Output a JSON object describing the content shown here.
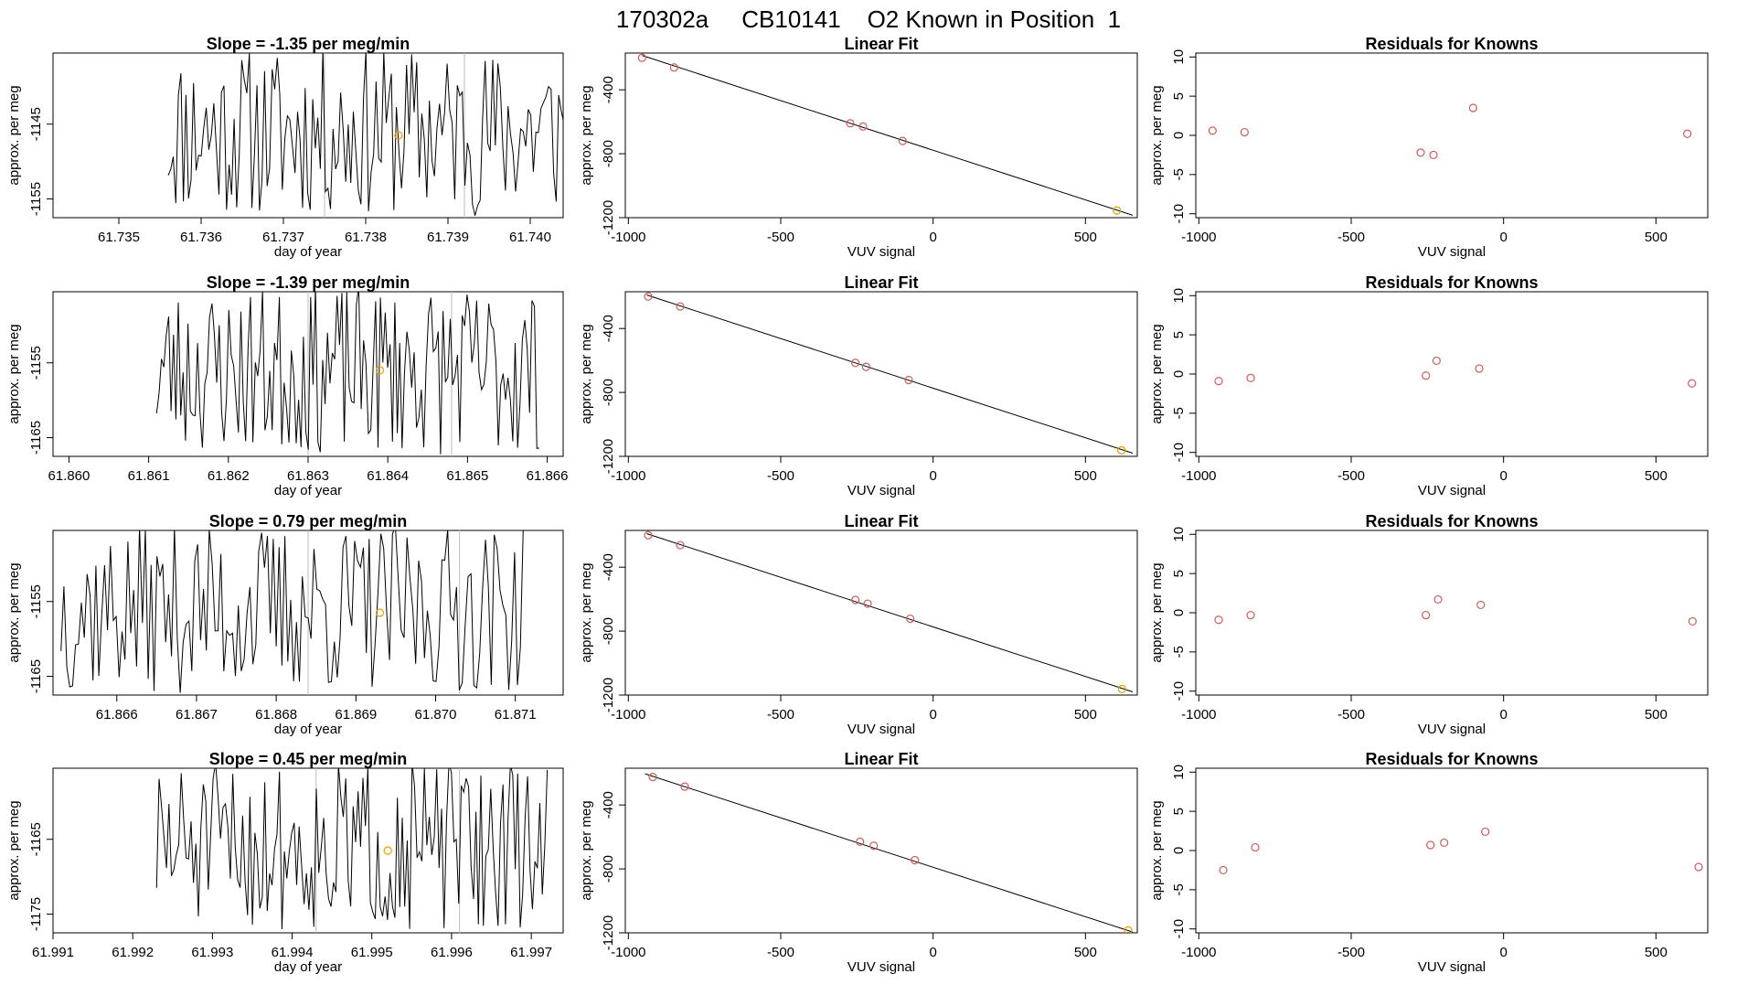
{
  "page_title": "170302a     CB10141    O2 Known in Position  1",
  "colors": {
    "line": "#000000",
    "gray_line": "#bebebe",
    "point_red": "#cd5c5c",
    "point_orange": "#e69f00",
    "axes": "#000000"
  },
  "chart_data": [
    {
      "type": "line",
      "row": 0,
      "col": 0,
      "title": "Slope =  -1.35  per meg/min",
      "xlabel": "day of year",
      "ylabel": "approx. per meg",
      "xlim": [
        61.7342,
        61.7404
      ],
      "ylim": [
        -1157.5,
        -1135.5
      ],
      "xticks": [
        "61.735",
        "61.736",
        "61.737",
        "61.738",
        "61.739",
        "61.740"
      ],
      "yticks": [
        "-1145",
        "-1155"
      ],
      "trace_x_range": [
        61.7356,
        61.7405
      ],
      "trace_seed": 11,
      "trace_center": -1146,
      "trace_spread": 9,
      "vlines": [
        61.7375,
        61.7392
      ],
      "marker": {
        "x": 61.7384,
        "y": -1146.5
      }
    },
    {
      "type": "scatter",
      "row": 0,
      "col": 1,
      "title": "Linear Fit",
      "xlabel": "VUV signal",
      "ylabel": "approx. per meg",
      "xlim": [
        -1010,
        670
      ],
      "ylim": [
        -1200,
        -170
      ],
      "xticks": [
        "-1000",
        "-500",
        "0",
        "500"
      ],
      "yticks": [
        "-400",
        "-800",
        "-1200"
      ],
      "fit_line": {
        "x": [
          -955,
          655
        ],
        "y": [
          -185,
          -1185
        ]
      },
      "points": [
        {
          "x": -955,
          "y": -200
        },
        {
          "x": -850,
          "y": -260
        },
        {
          "x": -272,
          "y": -610
        },
        {
          "x": -230,
          "y": -630
        },
        {
          "x": -100,
          "y": -720
        },
        {
          "x": 603,
          "y": -1155,
          "known": true
        }
      ]
    },
    {
      "type": "scatter",
      "row": 0,
      "col": 2,
      "title": "Residuals for Knowns",
      "xlabel": "VUV signal",
      "ylabel": "approx. per meg",
      "xlim": [
        -1010,
        670
      ],
      "ylim": [
        -10.5,
        10.5
      ],
      "xticks": [
        "-1000",
        "-500",
        "0",
        "500"
      ],
      "yticks": [
        "10",
        "5",
        "0",
        "-5",
        "-10"
      ],
      "points": [
        {
          "x": -955,
          "y": 0.6
        },
        {
          "x": -850,
          "y": 0.4
        },
        {
          "x": -272,
          "y": -2.2
        },
        {
          "x": -230,
          "y": -2.5
        },
        {
          "x": -100,
          "y": 3.5
        },
        {
          "x": 603,
          "y": 0.2
        }
      ]
    },
    {
      "type": "line",
      "row": 1,
      "col": 0,
      "title": "Slope =  -1.39  per meg/min",
      "xlabel": "day of year",
      "ylabel": "approx. per meg",
      "xlim": [
        61.8598,
        61.8662
      ],
      "ylim": [
        -1167.5,
        -1145.5
      ],
      "xticks": [
        "61.860",
        "61.861",
        "61.862",
        "61.863",
        "61.864",
        "61.865",
        "61.866"
      ],
      "yticks": [
        "-1155",
        "-1165"
      ],
      "trace_x_range": [
        61.8611,
        61.8659
      ],
      "trace_seed": 23,
      "trace_center": -1156,
      "trace_spread": 9,
      "vlines": [
        61.863,
        61.8648
      ],
      "marker": {
        "x": 61.8639,
        "y": -1156
      }
    },
    {
      "type": "scatter",
      "row": 1,
      "col": 1,
      "title": "Linear Fit",
      "xlabel": "VUV signal",
      "ylabel": "approx. per meg",
      "xlim": [
        -1010,
        670
      ],
      "ylim": [
        -1200,
        -170
      ],
      "xticks": [
        "-1000",
        "-500",
        "0",
        "500"
      ],
      "yticks": [
        "-400",
        "-800",
        "-1200"
      ],
      "fit_line": {
        "x": [
          -940,
          655
        ],
        "y": [
          -190,
          -1180
        ]
      },
      "points": [
        {
          "x": -935,
          "y": -200
        },
        {
          "x": -830,
          "y": -262
        },
        {
          "x": -255,
          "y": -615
        },
        {
          "x": -220,
          "y": -640
        },
        {
          "x": -80,
          "y": -722
        },
        {
          "x": 618,
          "y": -1162,
          "known": true
        }
      ]
    },
    {
      "type": "scatter",
      "row": 1,
      "col": 2,
      "title": "Residuals for Knowns",
      "xlabel": "VUV signal",
      "ylabel": "approx. per meg",
      "xlim": [
        -1010,
        670
      ],
      "ylim": [
        -10.5,
        10.5
      ],
      "xticks": [
        "-1000",
        "-500",
        "0",
        "500"
      ],
      "yticks": [
        "10",
        "5",
        "0",
        "-5",
        "-10"
      ],
      "points": [
        {
          "x": -935,
          "y": -0.9
        },
        {
          "x": -830,
          "y": -0.5
        },
        {
          "x": -255,
          "y": -0.2
        },
        {
          "x": -220,
          "y": 1.7
        },
        {
          "x": -80,
          "y": 0.7
        },
        {
          "x": 618,
          "y": -1.2
        }
      ]
    },
    {
      "type": "line",
      "row": 2,
      "col": 0,
      "title": "Slope =  0.79  per meg/min",
      "xlabel": "day of year",
      "ylabel": "approx. per meg",
      "xlim": [
        61.8652,
        61.8716
      ],
      "ylim": [
        -1167.5,
        -1145.5
      ],
      "xticks": [
        "61.866",
        "61.867",
        "61.868",
        "61.869",
        "61.870",
        "61.871"
      ],
      "yticks": [
        "-1155",
        "-1165"
      ],
      "trace_x_range": [
        61.8653,
        61.8711
      ],
      "trace_seed": 37,
      "trace_center": -1156,
      "trace_spread": 9,
      "vlines": [
        61.8684,
        61.8703
      ],
      "marker": {
        "x": 61.8693,
        "y": -1156.5
      }
    },
    {
      "type": "scatter",
      "row": 2,
      "col": 1,
      "title": "Linear Fit",
      "xlabel": "VUV signal",
      "ylabel": "approx. per meg",
      "xlim": [
        -1010,
        670
      ],
      "ylim": [
        -1200,
        -170
      ],
      "xticks": [
        "-1000",
        "-500",
        "0",
        "500"
      ],
      "yticks": [
        "-400",
        "-800",
        "-1200"
      ],
      "fit_line": {
        "x": [
          -940,
          655
        ],
        "y": [
          -190,
          -1180
        ]
      },
      "points": [
        {
          "x": -935,
          "y": -200
        },
        {
          "x": -830,
          "y": -262
        },
        {
          "x": -255,
          "y": -605
        },
        {
          "x": -215,
          "y": -628
        },
        {
          "x": -75,
          "y": -722
        },
        {
          "x": 620,
          "y": -1162,
          "known": true
        }
      ]
    },
    {
      "type": "scatter",
      "row": 2,
      "col": 2,
      "title": "Residuals for Knowns",
      "xlabel": "VUV signal",
      "ylabel": "approx. per meg",
      "xlim": [
        -1010,
        670
      ],
      "ylim": [
        -10.5,
        10.5
      ],
      "xticks": [
        "-1000",
        "-500",
        "0",
        "500"
      ],
      "yticks": [
        "10",
        "5",
        "0",
        "-5",
        "-10"
      ],
      "points": [
        {
          "x": -935,
          "y": -0.9
        },
        {
          "x": -830,
          "y": -0.3
        },
        {
          "x": -255,
          "y": -0.3
        },
        {
          "x": -215,
          "y": 1.7
        },
        {
          "x": -75,
          "y": 1.0
        },
        {
          "x": 620,
          "y": -1.1
        }
      ]
    },
    {
      "type": "line",
      "row": 3,
      "col": 0,
      "title": "Slope =  0.45  per meg/min",
      "xlabel": "day of year",
      "ylabel": "approx. per meg",
      "xlim": [
        61.991,
        61.9974
      ],
      "ylim": [
        -1177.5,
        -1155.5
      ],
      "xticks": [
        "61.991",
        "61.992",
        "61.993",
        "61.994",
        "61.995",
        "61.996",
        "61.997"
      ],
      "yticks": [
        "-1165",
        "-1175"
      ],
      "trace_x_range": [
        61.9923,
        61.9972
      ],
      "trace_seed": 51,
      "trace_center": -1166,
      "trace_spread": 9,
      "vlines": [
        61.9943,
        61.9961
      ],
      "marker": {
        "x": 61.9952,
        "y": -1166.5
      }
    },
    {
      "type": "scatter",
      "row": 3,
      "col": 1,
      "title": "Linear Fit",
      "xlabel": "VUV signal",
      "ylabel": "approx. per meg",
      "xlim": [
        -1010,
        670
      ],
      "ylim": [
        -1200,
        -170
      ],
      "xticks": [
        "-1000",
        "-500",
        "0",
        "500"
      ],
      "yticks": [
        "-400",
        "-800",
        "-1200"
      ],
      "fit_line": {
        "x": [
          -945,
          655
        ],
        "y": [
          -205,
          -1195
        ]
      },
      "points": [
        {
          "x": -920,
          "y": -225
        },
        {
          "x": -815,
          "y": -285
        },
        {
          "x": -240,
          "y": -630
        },
        {
          "x": -195,
          "y": -655
        },
        {
          "x": -60,
          "y": -745
        },
        {
          "x": 640,
          "y": -1185,
          "known": true
        }
      ]
    },
    {
      "type": "scatter",
      "row": 3,
      "col": 2,
      "title": "Residuals for Knowns",
      "xlabel": "VUV signal",
      "ylabel": "approx. per meg",
      "xlim": [
        -1010,
        670
      ],
      "ylim": [
        -10.5,
        10.5
      ],
      "xticks": [
        "-1000",
        "-500",
        "0",
        "500"
      ],
      "yticks": [
        "10",
        "5",
        "0",
        "-5",
        "-10"
      ],
      "points": [
        {
          "x": -920,
          "y": -2.5
        },
        {
          "x": -815,
          "y": 0.4
        },
        {
          "x": -240,
          "y": 0.7
        },
        {
          "x": -195,
          "y": 1.0
        },
        {
          "x": -60,
          "y": 2.4
        },
        {
          "x": 640,
          "y": -2.1
        }
      ]
    }
  ]
}
